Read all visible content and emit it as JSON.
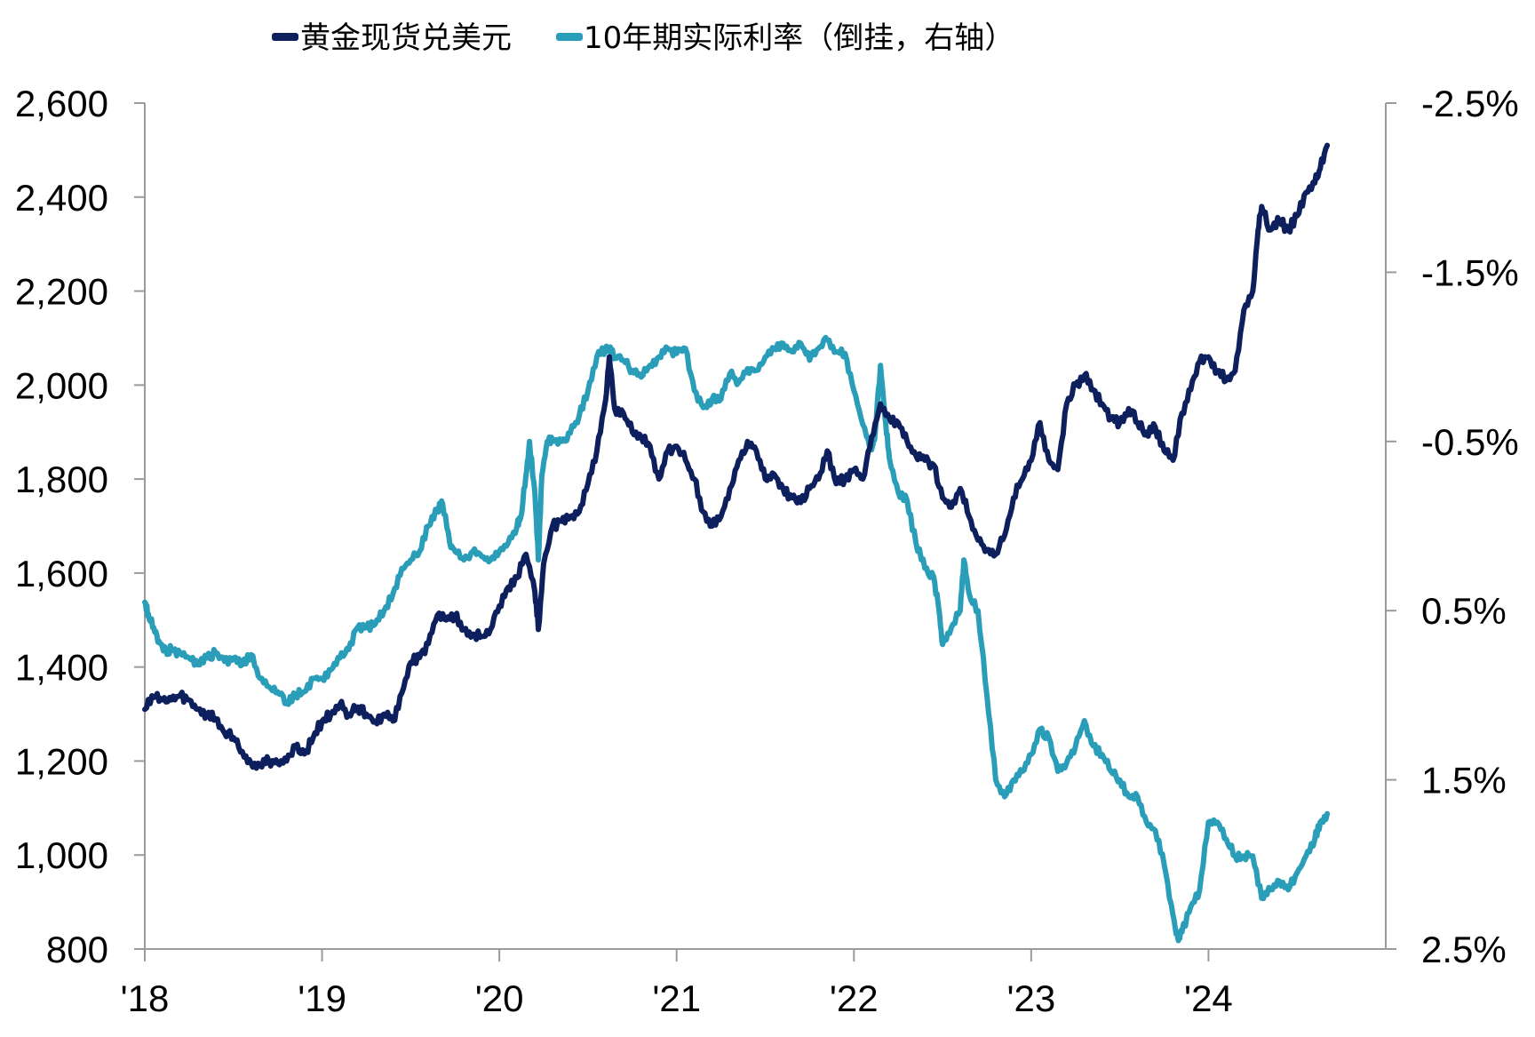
{
  "chart_data": {
    "type": "line",
    "title": "",
    "xlabel": "",
    "ylabel": "",
    "x_tick_labels": [
      "'18",
      "'19",
      "'20",
      "'21",
      "'22",
      "'23",
      "'24"
    ],
    "x_ticks": [
      2018,
      2019,
      2020,
      2021,
      2022,
      2023,
      2024
    ],
    "xlim": [
      2018,
      2024.75
    ],
    "y_left": {
      "lim": [
        800,
        2600
      ],
      "ticks": [
        800,
        1000,
        1200,
        1400,
        1600,
        1800,
        2000,
        2200,
        2400,
        2600
      ],
      "tick_labels": [
        "800",
        "1,000",
        "1,200",
        "1,400",
        "1,600",
        "1,800",
        "2,000",
        "2,200",
        "2,400",
        "2,600"
      ]
    },
    "y_right": {
      "inverted": true,
      "lim": [
        2.5,
        -2.5
      ],
      "ticks": [
        -2.5,
        -1.5,
        -0.5,
        0.5,
        1.5,
        2.5
      ],
      "tick_labels": [
        "-2.5%",
        "-1.5%",
        "-0.5%",
        "0.5%",
        "1.5%",
        "2.5%"
      ]
    },
    "grid": false,
    "legend": "top",
    "series": [
      {
        "name": "黄金现货兑美元",
        "axis": "left",
        "color": "#0d1f5c",
        "points": [
          [
            2018.0,
            1310
          ],
          [
            2018.05,
            1335
          ],
          [
            2018.1,
            1330
          ],
          [
            2018.15,
            1330
          ],
          [
            2018.2,
            1340
          ],
          [
            2018.25,
            1330
          ],
          [
            2018.3,
            1310
          ],
          [
            2018.35,
            1300
          ],
          [
            2018.4,
            1290
          ],
          [
            2018.45,
            1260
          ],
          [
            2018.5,
            1250
          ],
          [
            2018.55,
            1220
          ],
          [
            2018.6,
            1195
          ],
          [
            2018.65,
            1190
          ],
          [
            2018.7,
            1200
          ],
          [
            2018.75,
            1195
          ],
          [
            2018.8,
            1200
          ],
          [
            2018.85,
            1230
          ],
          [
            2018.9,
            1215
          ],
          [
            2018.95,
            1250
          ],
          [
            2019.0,
            1285
          ],
          [
            2019.05,
            1300
          ],
          [
            2019.1,
            1320
          ],
          [
            2019.15,
            1300
          ],
          [
            2019.2,
            1315
          ],
          [
            2019.25,
            1300
          ],
          [
            2019.3,
            1285
          ],
          [
            2019.35,
            1300
          ],
          [
            2019.4,
            1285
          ],
          [
            2019.45,
            1345
          ],
          [
            2019.5,
            1410
          ],
          [
            2019.55,
            1420
          ],
          [
            2019.6,
            1450
          ],
          [
            2019.65,
            1510
          ],
          [
            2019.7,
            1500
          ],
          [
            2019.75,
            1510
          ],
          [
            2019.8,
            1480
          ],
          [
            2019.85,
            1470
          ],
          [
            2019.9,
            1465
          ],
          [
            2019.95,
            1480
          ],
          [
            2020.0,
            1530
          ],
          [
            2020.05,
            1570
          ],
          [
            2020.1,
            1590
          ],
          [
            2020.15,
            1640
          ],
          [
            2020.2,
            1560
          ],
          [
            2020.22,
            1480
          ],
          [
            2020.25,
            1620
          ],
          [
            2020.3,
            1700
          ],
          [
            2020.35,
            1710
          ],
          [
            2020.4,
            1720
          ],
          [
            2020.45,
            1730
          ],
          [
            2020.5,
            1790
          ],
          [
            2020.55,
            1860
          ],
          [
            2020.6,
            1970
          ],
          [
            2020.62,
            2060
          ],
          [
            2020.65,
            1950
          ],
          [
            2020.7,
            1940
          ],
          [
            2020.75,
            1900
          ],
          [
            2020.8,
            1890
          ],
          [
            2020.85,
            1870
          ],
          [
            2020.9,
            1800
          ],
          [
            2020.95,
            1860
          ],
          [
            2021.0,
            1870
          ],
          [
            2021.05,
            1840
          ],
          [
            2021.1,
            1800
          ],
          [
            2021.15,
            1730
          ],
          [
            2021.2,
            1700
          ],
          [
            2021.25,
            1720
          ],
          [
            2021.3,
            1780
          ],
          [
            2021.35,
            1840
          ],
          [
            2021.4,
            1880
          ],
          [
            2021.45,
            1860
          ],
          [
            2021.5,
            1800
          ],
          [
            2021.55,
            1810
          ],
          [
            2021.6,
            1780
          ],
          [
            2021.65,
            1760
          ],
          [
            2021.7,
            1750
          ],
          [
            2021.75,
            1780
          ],
          [
            2021.8,
            1800
          ],
          [
            2021.85,
            1860
          ],
          [
            2021.9,
            1790
          ],
          [
            2021.95,
            1800
          ],
          [
            2022.0,
            1820
          ],
          [
            2022.05,
            1800
          ],
          [
            2022.1,
            1890
          ],
          [
            2022.15,
            1960
          ],
          [
            2022.2,
            1930
          ],
          [
            2022.25,
            1920
          ],
          [
            2022.3,
            1880
          ],
          [
            2022.35,
            1850
          ],
          [
            2022.4,
            1840
          ],
          [
            2022.45,
            1830
          ],
          [
            2022.5,
            1760
          ],
          [
            2022.55,
            1740
          ],
          [
            2022.6,
            1780
          ],
          [
            2022.65,
            1720
          ],
          [
            2022.7,
            1670
          ],
          [
            2022.75,
            1650
          ],
          [
            2022.8,
            1640
          ],
          [
            2022.85,
            1680
          ],
          [
            2022.9,
            1760
          ],
          [
            2022.95,
            1800
          ],
          [
            2023.0,
            1840
          ],
          [
            2023.05,
            1920
          ],
          [
            2023.1,
            1840
          ],
          [
            2023.15,
            1820
          ],
          [
            2023.2,
            1960
          ],
          [
            2023.25,
            2000
          ],
          [
            2023.3,
            2020
          ],
          [
            2023.35,
            1990
          ],
          [
            2023.4,
            1960
          ],
          [
            2023.45,
            1930
          ],
          [
            2023.5,
            1920
          ],
          [
            2023.55,
            1950
          ],
          [
            2023.6,
            1920
          ],
          [
            2023.65,
            1900
          ],
          [
            2023.7,
            1910
          ],
          [
            2023.75,
            1860
          ],
          [
            2023.8,
            1840
          ],
          [
            2023.85,
            1940
          ],
          [
            2023.9,
            1990
          ],
          [
            2023.95,
            2050
          ],
          [
            2024.0,
            2060
          ],
          [
            2024.05,
            2030
          ],
          [
            2024.1,
            2010
          ],
          [
            2024.15,
            2030
          ],
          [
            2024.2,
            2160
          ],
          [
            2024.25,
            2200
          ],
          [
            2024.28,
            2330
          ],
          [
            2024.3,
            2380
          ],
          [
            2024.35,
            2330
          ],
          [
            2024.4,
            2350
          ],
          [
            2024.45,
            2330
          ],
          [
            2024.5,
            2360
          ],
          [
            2024.55,
            2410
          ],
          [
            2024.6,
            2430
          ],
          [
            2024.63,
            2460
          ],
          [
            2024.67,
            2510
          ]
        ]
      },
      {
        "name": "10年期实际利率（倒挂，右轴）",
        "axis": "right",
        "color": "#2a9db8",
        "points": [
          [
            2018.0,
            0.45
          ],
          [
            2018.02,
            0.52
          ],
          [
            2018.05,
            0.6
          ],
          [
            2018.08,
            0.68
          ],
          [
            2018.12,
            0.74
          ],
          [
            2018.15,
            0.73
          ],
          [
            2018.2,
            0.75
          ],
          [
            2018.25,
            0.78
          ],
          [
            2018.3,
            0.82
          ],
          [
            2018.35,
            0.78
          ],
          [
            2018.4,
            0.75
          ],
          [
            2018.45,
            0.8
          ],
          [
            2018.5,
            0.78
          ],
          [
            2018.55,
            0.82
          ],
          [
            2018.6,
            0.76
          ],
          [
            2018.65,
            0.9
          ],
          [
            2018.7,
            0.95
          ],
          [
            2018.75,
            0.98
          ],
          [
            2018.8,
            1.05
          ],
          [
            2018.85,
            1.0
          ],
          [
            2018.9,
            0.98
          ],
          [
            2018.95,
            0.9
          ],
          [
            2019.0,
            0.9
          ],
          [
            2019.05,
            0.85
          ],
          [
            2019.1,
            0.78
          ],
          [
            2019.15,
            0.73
          ],
          [
            2019.2,
            0.6
          ],
          [
            2019.25,
            0.6
          ],
          [
            2019.3,
            0.58
          ],
          [
            2019.35,
            0.5
          ],
          [
            2019.4,
            0.4
          ],
          [
            2019.45,
            0.25
          ],
          [
            2019.5,
            0.2
          ],
          [
            2019.55,
            0.15
          ],
          [
            2019.6,
            0.0
          ],
          [
            2019.65,
            -0.1
          ],
          [
            2019.68,
            -0.13
          ],
          [
            2019.72,
            0.1
          ],
          [
            2019.75,
            0.15
          ],
          [
            2019.8,
            0.2
          ],
          [
            2019.85,
            0.15
          ],
          [
            2019.9,
            0.18
          ],
          [
            2019.95,
            0.2
          ],
          [
            2020.0,
            0.15
          ],
          [
            2020.05,
            0.1
          ],
          [
            2020.1,
            0.0
          ],
          [
            2020.12,
            -0.05
          ],
          [
            2020.15,
            -0.3
          ],
          [
            2020.17,
            -0.5
          ],
          [
            2020.2,
            -0.2
          ],
          [
            2020.22,
            0.2
          ],
          [
            2020.24,
            -0.3
          ],
          [
            2020.27,
            -0.5
          ],
          [
            2020.3,
            -0.5
          ],
          [
            2020.35,
            -0.5
          ],
          [
            2020.4,
            -0.55
          ],
          [
            2020.45,
            -0.65
          ],
          [
            2020.5,
            -0.8
          ],
          [
            2020.55,
            -1.0
          ],
          [
            2020.6,
            -1.05
          ],
          [
            2020.62,
            -1.05
          ],
          [
            2020.65,
            -1.0
          ],
          [
            2020.7,
            -0.98
          ],
          [
            2020.75,
            -0.92
          ],
          [
            2020.8,
            -0.88
          ],
          [
            2020.85,
            -0.95
          ],
          [
            2020.9,
            -1.0
          ],
          [
            2020.95,
            -1.05
          ],
          [
            2021.0,
            -1.02
          ],
          [
            2021.05,
            -1.05
          ],
          [
            2021.1,
            -0.8
          ],
          [
            2021.15,
            -0.7
          ],
          [
            2021.2,
            -0.75
          ],
          [
            2021.25,
            -0.75
          ],
          [
            2021.3,
            -0.9
          ],
          [
            2021.35,
            -0.85
          ],
          [
            2021.4,
            -0.93
          ],
          [
            2021.45,
            -0.92
          ],
          [
            2021.5,
            -1.0
          ],
          [
            2021.55,
            -1.05
          ],
          [
            2021.6,
            -1.08
          ],
          [
            2021.65,
            -1.03
          ],
          [
            2021.7,
            -1.08
          ],
          [
            2021.75,
            -0.98
          ],
          [
            2021.8,
            -1.05
          ],
          [
            2021.85,
            -1.1
          ],
          [
            2021.9,
            -1.03
          ],
          [
            2021.95,
            -1.02
          ],
          [
            2022.0,
            -0.8
          ],
          [
            2022.05,
            -0.6
          ],
          [
            2022.1,
            -0.45
          ],
          [
            2022.12,
            -0.55
          ],
          [
            2022.15,
            -0.95
          ],
          [
            2022.18,
            -0.6
          ],
          [
            2022.2,
            -0.4
          ],
          [
            2022.25,
            -0.2
          ],
          [
            2022.3,
            -0.15
          ],
          [
            2022.35,
            0.1
          ],
          [
            2022.4,
            0.25
          ],
          [
            2022.45,
            0.3
          ],
          [
            2022.48,
            0.5
          ],
          [
            2022.5,
            0.7
          ],
          [
            2022.55,
            0.6
          ],
          [
            2022.6,
            0.5
          ],
          [
            2022.62,
            0.2
          ],
          [
            2022.65,
            0.4
          ],
          [
            2022.7,
            0.5
          ],
          [
            2022.75,
            1.0
          ],
          [
            2022.8,
            1.5
          ],
          [
            2022.85,
            1.6
          ],
          [
            2022.9,
            1.5
          ],
          [
            2022.95,
            1.45
          ],
          [
            2023.0,
            1.35
          ],
          [
            2023.05,
            1.2
          ],
          [
            2023.1,
            1.25
          ],
          [
            2023.15,
            1.45
          ],
          [
            2023.2,
            1.4
          ],
          [
            2023.25,
            1.3
          ],
          [
            2023.3,
            1.15
          ],
          [
            2023.35,
            1.3
          ],
          [
            2023.4,
            1.35
          ],
          [
            2023.45,
            1.45
          ],
          [
            2023.5,
            1.5
          ],
          [
            2023.55,
            1.6
          ],
          [
            2023.6,
            1.6
          ],
          [
            2023.65,
            1.75
          ],
          [
            2023.7,
            1.8
          ],
          [
            2023.75,
            2.0
          ],
          [
            2023.8,
            2.3
          ],
          [
            2023.83,
            2.45
          ],
          [
            2023.85,
            2.4
          ],
          [
            2023.9,
            2.25
          ],
          [
            2023.95,
            2.15
          ],
          [
            2024.0,
            1.75
          ],
          [
            2024.05,
            1.75
          ],
          [
            2024.1,
            1.85
          ],
          [
            2024.15,
            1.95
          ],
          [
            2024.2,
            1.95
          ],
          [
            2024.25,
            1.95
          ],
          [
            2024.3,
            2.2
          ],
          [
            2024.35,
            2.15
          ],
          [
            2024.4,
            2.1
          ],
          [
            2024.45,
            2.15
          ],
          [
            2024.5,
            2.05
          ],
          [
            2024.55,
            1.95
          ],
          [
            2024.6,
            1.85
          ],
          [
            2024.63,
            1.75
          ],
          [
            2024.67,
            1.7
          ]
        ]
      }
    ]
  }
}
